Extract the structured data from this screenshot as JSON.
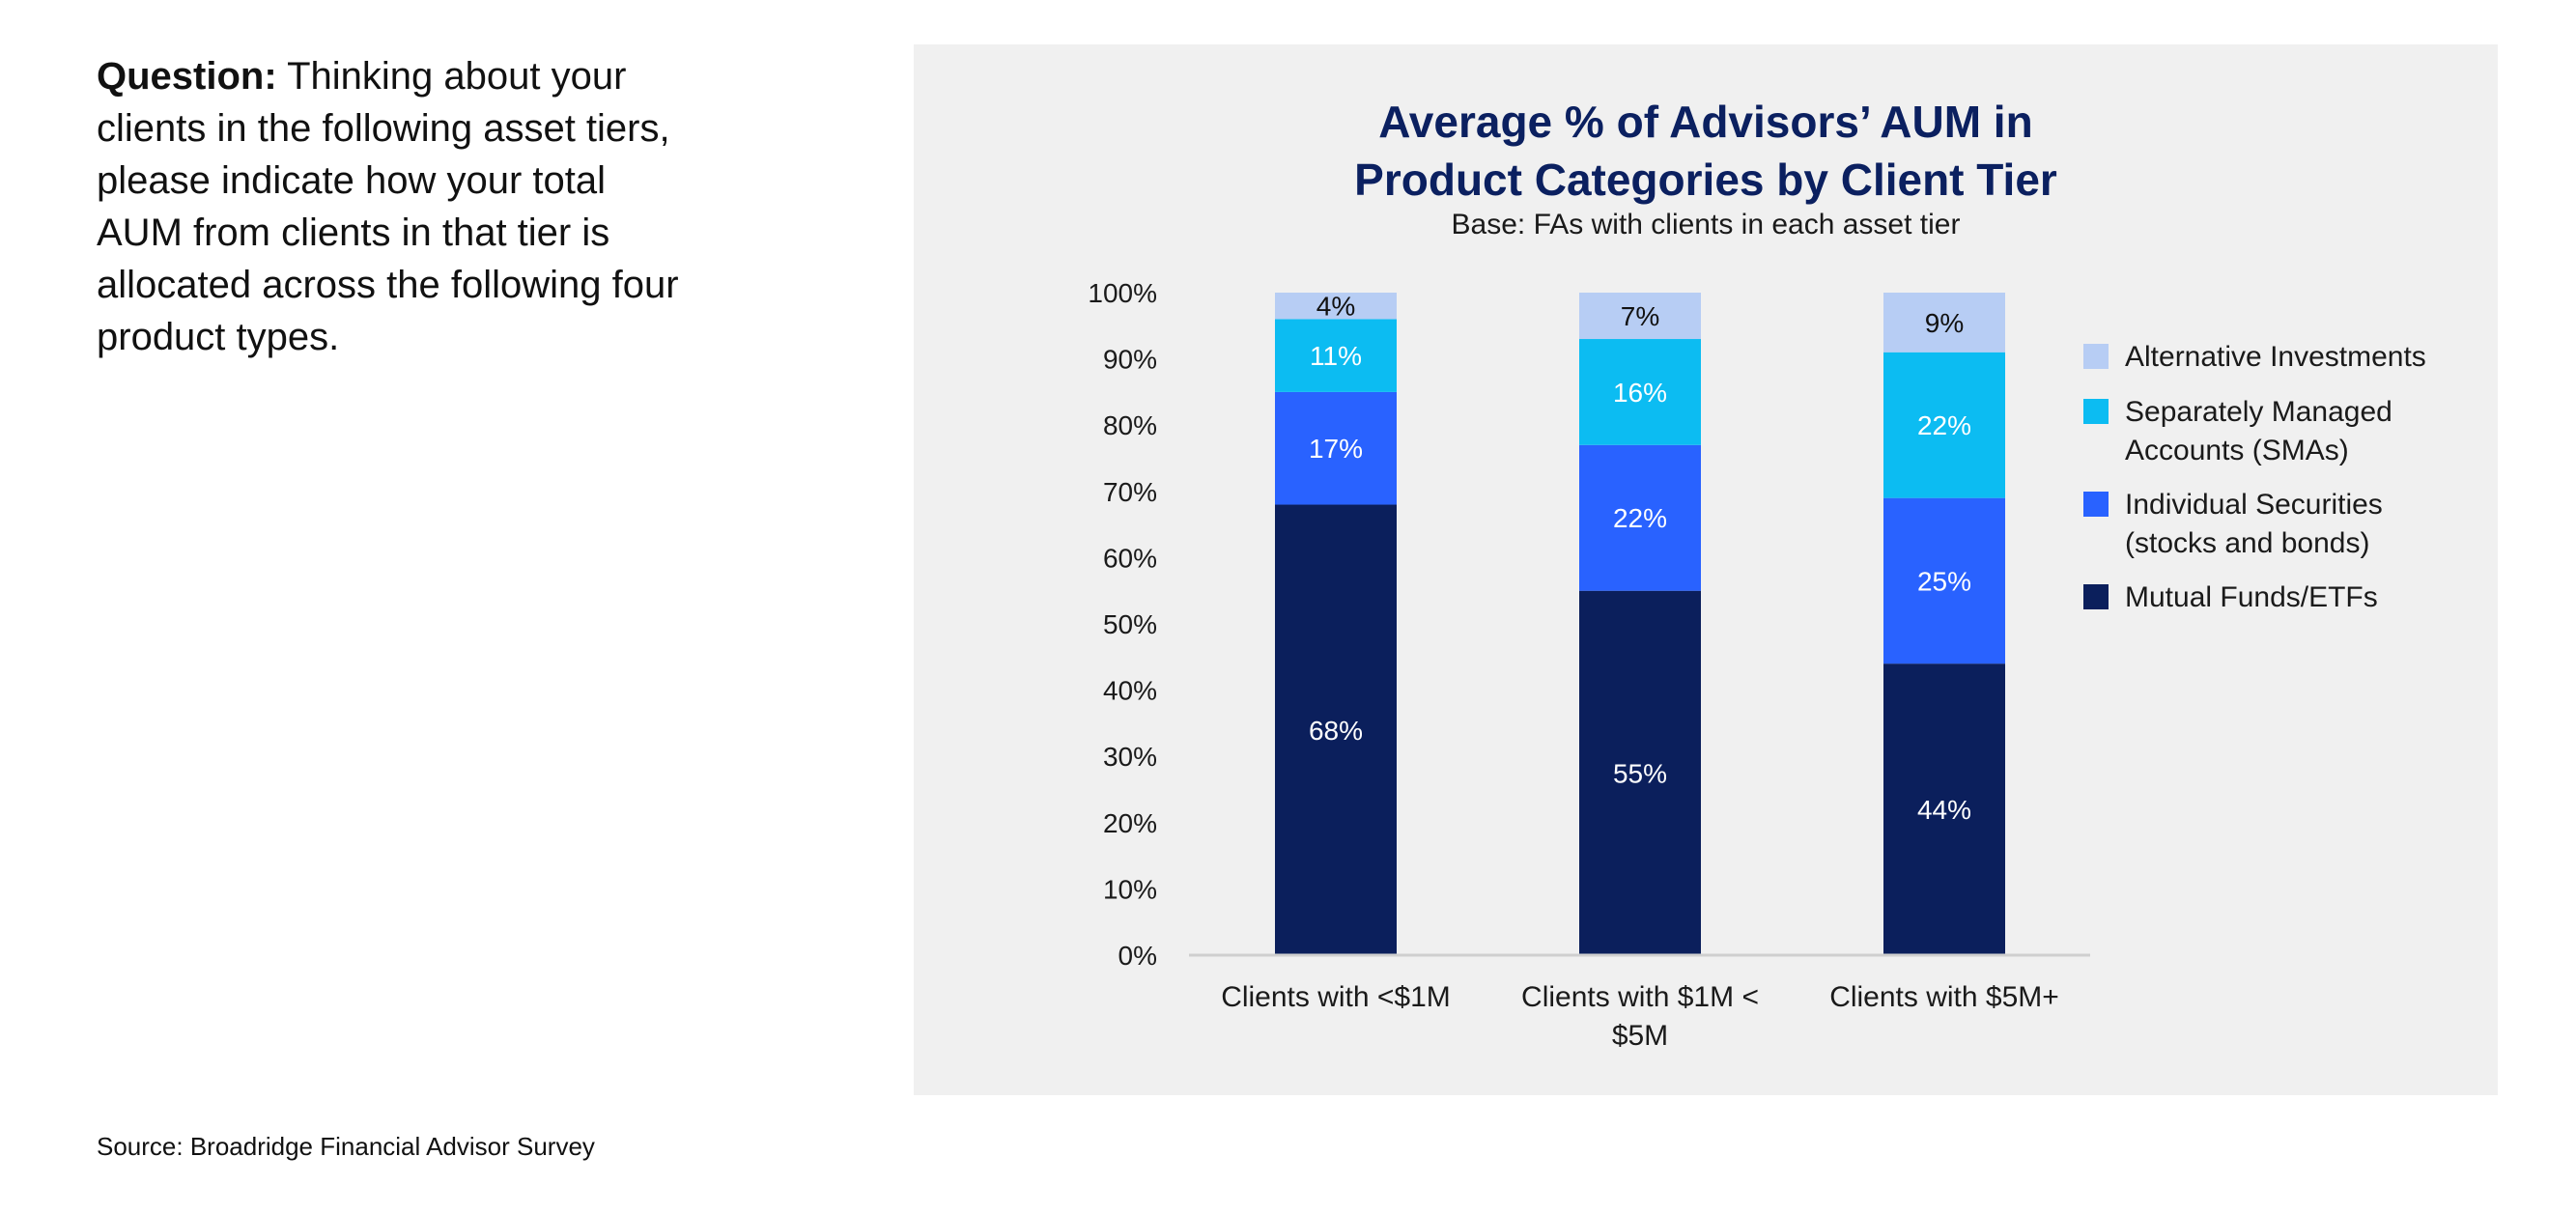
{
  "question": {
    "prefix": "Question:",
    "text": " Thinking about your clients in the following asset tiers, please indicate how your total AUM from clients in that tier is allocated across the following four product types."
  },
  "source": "Source: Broadridge Financial Advisor Survey",
  "chart_data": {
    "type": "bar",
    "stacked": true,
    "title_line1": "Average % of Advisors’ AUM in",
    "title_line2": "Product Categories by Client Tier",
    "subtitle": "Base: FAs with clients in each asset tier",
    "categories": [
      [
        "Clients with <$1M"
      ],
      [
        "Clients with $1M <",
        "$5M"
      ],
      [
        "Clients with $5M+"
      ]
    ],
    "ylim": [
      0,
      100
    ],
    "yticks": [
      "0%",
      "10%",
      "20%",
      "30%",
      "40%",
      "50%",
      "60%",
      "70%",
      "80%",
      "90%",
      "100%"
    ],
    "grid": false,
    "legend_position": "right",
    "series": [
      {
        "name": "Mutual Funds/ETFs",
        "values": [
          68,
          55,
          44
        ],
        "color": "#0b1f5c",
        "label_color": "#ffffff"
      },
      {
        "name": "Individual Securities (stocks and bonds)",
        "values": [
          17,
          22,
          25
        ],
        "color": "#2962ff",
        "label_color": "#ffffff"
      },
      {
        "name": "Separately Managed Accounts (SMAs)",
        "values": [
          11,
          16,
          22
        ],
        "color": "#0cbcf2",
        "label_color": "#ffffff"
      },
      {
        "name": "Alternative Investments",
        "values": [
          4,
          7,
          9
        ],
        "color": "#b7cdf4",
        "label_color": "#111111"
      }
    ],
    "legend": [
      {
        "lines": [
          "Alternative Investments"
        ],
        "color": "#b7cdf4"
      },
      {
        "lines": [
          "Separately Managed",
          "Accounts (SMAs)"
        ],
        "color": "#0cbcf2"
      },
      {
        "lines": [
          "Individual Securities",
          "(stocks and bonds)"
        ],
        "color": "#2962ff"
      },
      {
        "lines": [
          "Mutual Funds/ETFs"
        ],
        "color": "#0b1f5c"
      }
    ],
    "unit": "%"
  }
}
